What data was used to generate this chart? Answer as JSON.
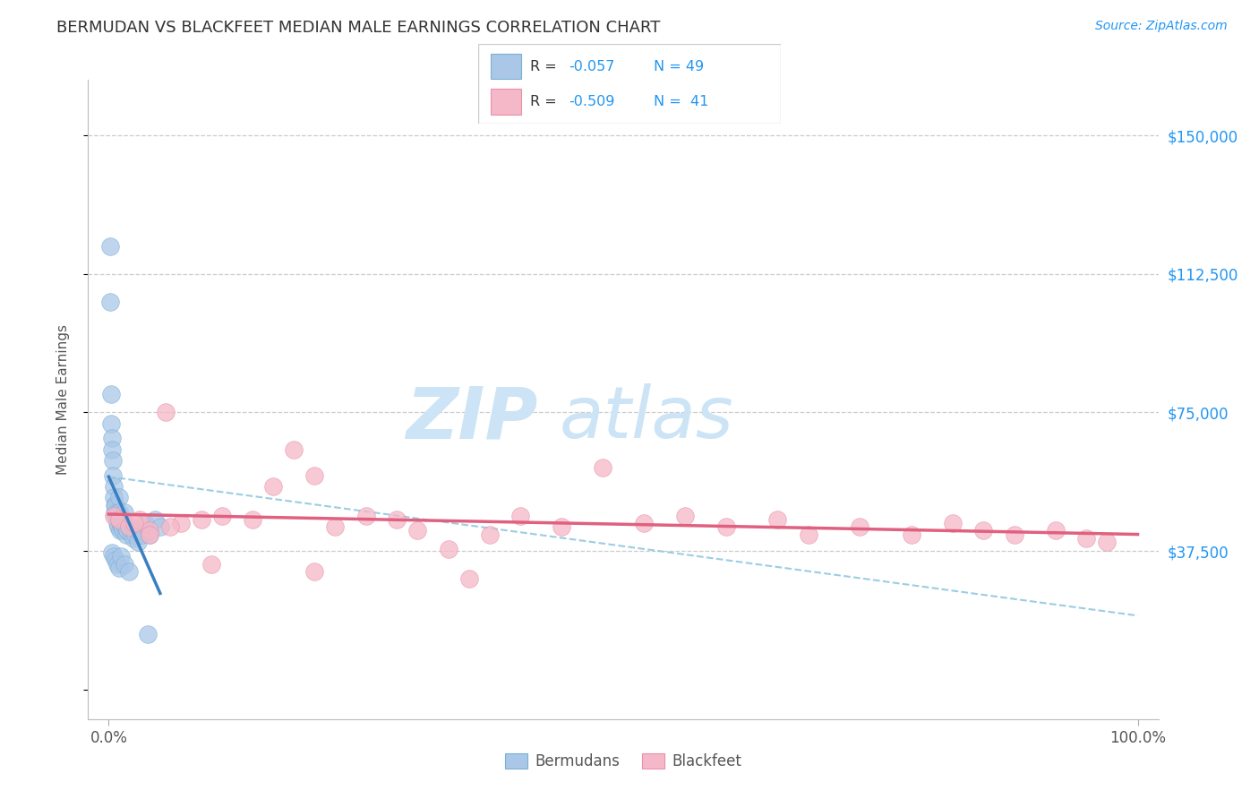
{
  "title": "BERMUDAN VS BLACKFEET MEDIAN MALE EARNINGS CORRELATION CHART",
  "source": "Source: ZipAtlas.com",
  "ylabel": "Median Male Earnings",
  "ytick_values": [
    0,
    37500,
    75000,
    112500,
    150000
  ],
  "ytick_labels": [
    "",
    "$37,500",
    "$75,000",
    "$112,500",
    "$150,000"
  ],
  "xtick_values": [
    0,
    100
  ],
  "xtick_labels": [
    "0.0%",
    "100.0%"
  ],
  "legend1_label": "R = -0.057  N = 49",
  "legend2_label": "R = -0.509  N =  41",
  "legend1_r": "-0.057",
  "legend1_n": "49",
  "legend2_r": "-0.509",
  "legend2_n": "41",
  "blue_scatter_color": "#aac7e8",
  "blue_edge_color": "#7aafd4",
  "pink_scatter_color": "#f5b8c8",
  "pink_edge_color": "#e890a8",
  "blue_line_color": "#3a7fc1",
  "pink_line_color": "#e06080",
  "dashed_line_color": "#90c8e0",
  "grid_color": "#cccccc",
  "title_color": "#333333",
  "source_color": "#2196F3",
  "ytick_color": "#2196F3",
  "ylabel_color": "#555555",
  "xtick_color": "#555555",
  "watermark_zip_color": "#cce4f5",
  "watermark_atlas_color": "#cce4f5",
  "background": "#ffffff",
  "ylim": [
    -8000,
    165000
  ],
  "xlim": [
    -2,
    102
  ],
  "bermudans_x": [
    0.1,
    0.1,
    0.2,
    0.2,
    0.3,
    0.3,
    0.4,
    0.4,
    0.5,
    0.5,
    0.6,
    0.6,
    0.7,
    0.7,
    0.8,
    0.8,
    0.9,
    0.9,
    1.0,
    1.0,
    1.1,
    1.1,
    1.2,
    1.3,
    1.4,
    1.5,
    1.6,
    1.7,
    1.8,
    2.0,
    2.2,
    2.4,
    2.6,
    2.8,
    3.0,
    3.2,
    3.5,
    4.0,
    4.5,
    5.0,
    0.3,
    0.5,
    0.7,
    0.8,
    1.0,
    1.2,
    1.5,
    2.0,
    3.8
  ],
  "bermudans_y": [
    120000,
    105000,
    80000,
    72000,
    68000,
    65000,
    62000,
    58000,
    55000,
    52000,
    50000,
    48000,
    50000,
    47000,
    48000,
    45000,
    46000,
    44000,
    52000,
    48000,
    46000,
    43000,
    45000,
    44000,
    43000,
    48000,
    44000,
    42000,
    43000,
    44000,
    42000,
    41000,
    42000,
    40000,
    43000,
    42000,
    45000,
    42000,
    46000,
    44000,
    37000,
    36000,
    35000,
    34000,
    33000,
    36000,
    34000,
    32000,
    15000
  ],
  "blackfeet_x": [
    0.5,
    1.0,
    2.0,
    3.0,
    4.0,
    5.5,
    7.0,
    9.0,
    11.0,
    14.0,
    16.0,
    18.0,
    20.0,
    22.0,
    25.0,
    28.0,
    30.0,
    33.0,
    37.0,
    40.0,
    44.0,
    48.0,
    52.0,
    56.0,
    60.0,
    65.0,
    68.0,
    73.0,
    78.0,
    82.0,
    85.0,
    88.0,
    92.0,
    95.0,
    97.0,
    2.5,
    4.0,
    6.0,
    10.0,
    20.0,
    35.0
  ],
  "blackfeet_y": [
    47000,
    46000,
    44000,
    46000,
    43000,
    75000,
    45000,
    46000,
    47000,
    46000,
    55000,
    65000,
    58000,
    44000,
    47000,
    46000,
    43000,
    38000,
    42000,
    47000,
    44000,
    60000,
    45000,
    47000,
    44000,
    46000,
    42000,
    44000,
    42000,
    45000,
    43000,
    42000,
    43000,
    41000,
    40000,
    45000,
    42000,
    44000,
    34000,
    32000,
    30000
  ]
}
